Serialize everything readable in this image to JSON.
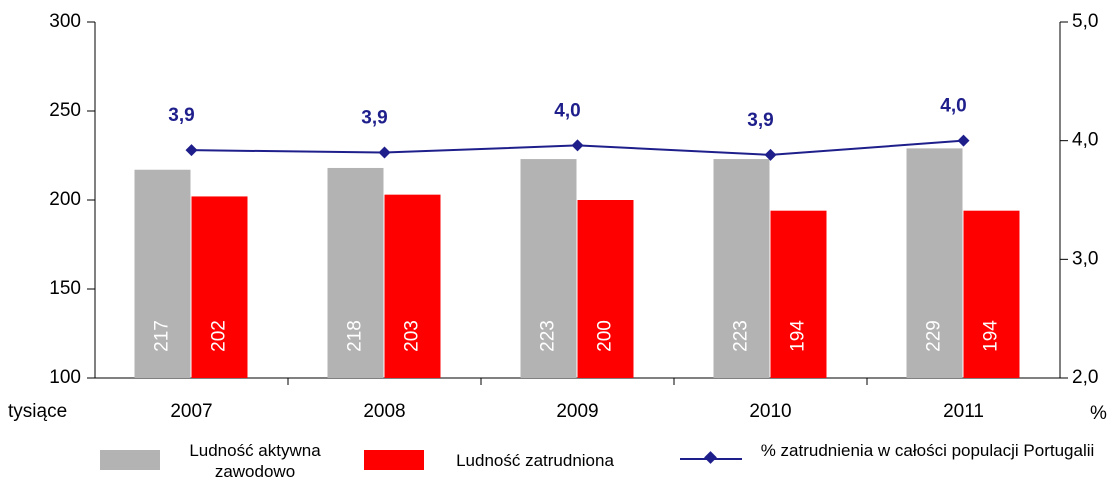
{
  "chart_data": {
    "type": "bar",
    "categories": [
      "2007",
      "2008",
      "2009",
      "2010",
      "2011"
    ],
    "series": [
      {
        "name": "Ludność aktywna zawodowo",
        "color": "#b3b3b3",
        "values": [
          217,
          218,
          223,
          223,
          229
        ]
      },
      {
        "name": "Ludność zatrudniona",
        "color": "#ff0000",
        "values": [
          202,
          203,
          200,
          194,
          194
        ]
      },
      {
        "name": "% zatrudnienia w całości populacji Portugalii",
        "color": "#1f1f8c",
        "axis": "y2",
        "type": "line",
        "values": [
          3.92,
          3.9,
          3.96,
          3.88,
          4.0
        ],
        "value_labels": [
          "3,9",
          "3,9",
          "4,0",
          "3,9",
          "4,0"
        ]
      }
    ],
    "ylim": [
      100,
      300
    ],
    "yticks": [
      100,
      150,
      200,
      250,
      300
    ],
    "y2lim": [
      2.0,
      5.0
    ],
    "y2ticks": [
      {
        "value": 2.0,
        "label": "2,0"
      },
      {
        "value": 3.0,
        "label": "3,0"
      },
      {
        "value": 4.0,
        "label": "4,0"
      },
      {
        "value": 5.0,
        "label": "5,0"
      }
    ],
    "ylabel": "tysiące",
    "y2label": "%"
  }
}
